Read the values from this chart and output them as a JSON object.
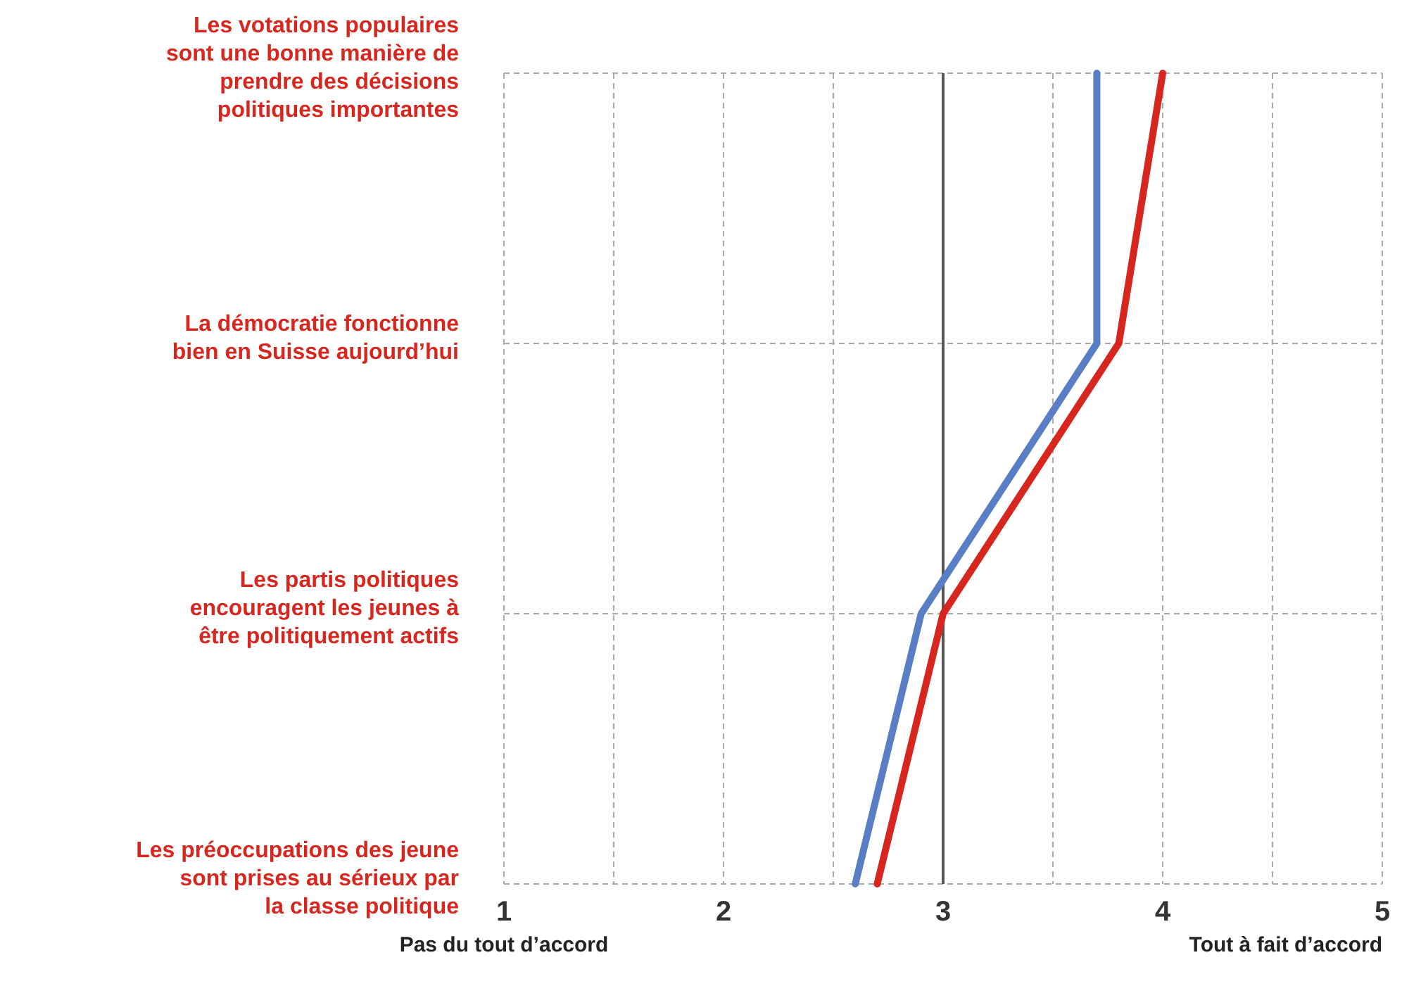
{
  "chart_data": {
    "type": "line",
    "orientation": "horizontal",
    "categories": [
      "Les votations populaires sont une bonne manière de prendre des décisions politiques importantes",
      "La démocratie fonctionne bien en Suisse aujourd’hui",
      "Les partis politiques encouragent les jeunes à être politiquement actifs",
      "Les préoccupations des jeune sont prises au sérieux par la classe politique"
    ],
    "series": [
      {
        "color": "#5a7ec6",
        "values": [
          3.7,
          3.7,
          2.9,
          2.6
        ]
      },
      {
        "color": "#d7261e",
        "values": [
          4.0,
          3.8,
          3.0,
          2.7
        ]
      }
    ],
    "xlim": [
      1,
      5
    ],
    "xticks": [
      1,
      {
        "value": 1.5,
        "label": null
      },
      2,
      {
        "value": 2.5,
        "label": null
      },
      3,
      {
        "value": 3.5,
        "label": null
      },
      4,
      {
        "value": 4.5,
        "label": null
      },
      5
    ],
    "grid": true,
    "marker": "none",
    "line_style": "solid",
    "ref_lines": [
      {
        "axis": "x",
        "value": 3,
        "color": "#555555"
      }
    ],
    "annotations": [
      "Pas du tout d’accord",
      "Tout à fait d’accord"
    ]
  }
}
